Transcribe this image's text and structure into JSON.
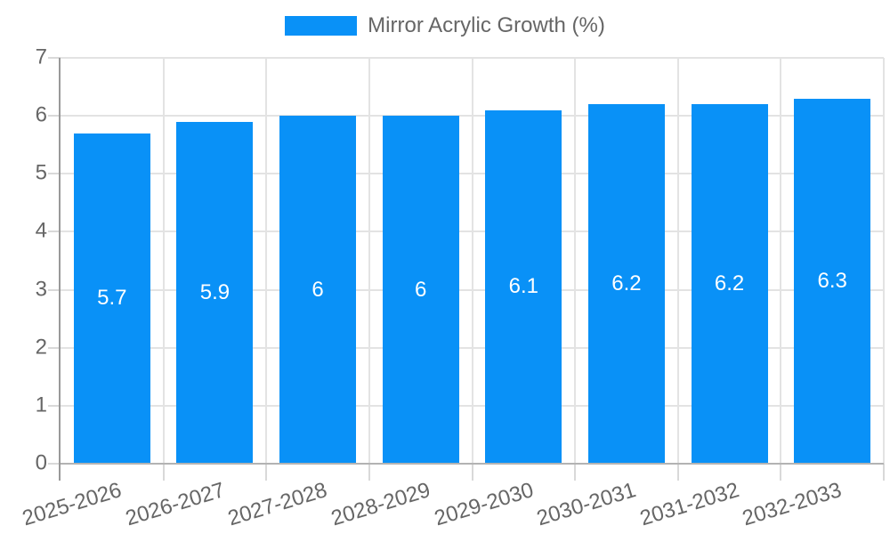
{
  "legend": {
    "label": "Mirror Acrylic Growth (%)"
  },
  "chart_data": {
    "type": "bar",
    "title": "",
    "xlabel": "",
    "ylabel": "",
    "categories": [
      "2025-2026",
      "2026-2027",
      "2027-2028",
      "2028-2029",
      "2029-2030",
      "2030-2031",
      "2031-2032",
      "2032-2033"
    ],
    "series": [
      {
        "name": "Mirror Acrylic Growth (%)",
        "values": [
          5.7,
          5.9,
          6,
          6,
          6.1,
          6.2,
          6.2,
          6.3
        ]
      }
    ],
    "bar_labels": [
      "5.7",
      "5.9",
      "6",
      "6",
      "6.1",
      "6.2",
      "6.2",
      "6.3"
    ],
    "ylim": [
      0,
      7
    ],
    "yticks": [
      0,
      1,
      2,
      3,
      4,
      5,
      6,
      7
    ],
    "ytick_labels": [
      "0",
      "1",
      "2",
      "3",
      "4",
      "5",
      "6",
      "7"
    ],
    "grid": true,
    "legend_position": "top",
    "x_label_rotation_deg": -17,
    "colors": {
      "bar": "#0991f7",
      "bar_label": "#ffffff",
      "axis_text": "#666666",
      "gridline": "#e3e3e3",
      "baseline": "#b3b3b3",
      "axis_line": "#999999",
      "tick": "#d9d9d9",
      "background": "#ffffff"
    }
  }
}
